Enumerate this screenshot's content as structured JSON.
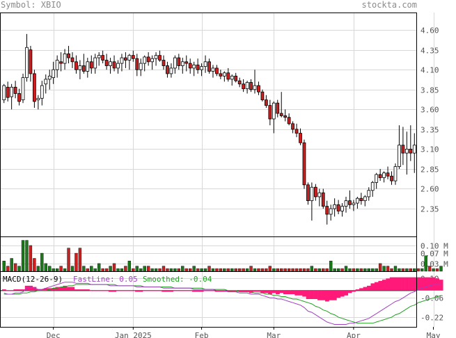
{
  "header": {
    "symbol_text": "Symbol: XBIO",
    "site_text": "stockta.com"
  },
  "colors": {
    "up": "#ffffff",
    "down": "#cc1f1f",
    "vol_up": "#1a7a1a",
    "vol_down": "#cc1f1f",
    "grid": "#d8d8d8",
    "frame": "#000000",
    "macd_hist": "#ff1a7a",
    "fastline": "#a040c0",
    "smoothed": "#20a020",
    "axis_text": "#555555"
  },
  "chart_data": [
    {
      "type": "candlestick",
      "title": "",
      "ylim": [
        2.0,
        4.82
      ],
      "yticks": [
        4.6,
        4.35,
        4.1,
        3.85,
        3.6,
        3.35,
        3.1,
        2.85,
        2.6,
        2.35
      ],
      "ytick_labels": [
        "4.60",
        "4.35",
        "4.10",
        "3.85",
        "3.60",
        "3.35",
        "3.10",
        "2.85",
        "2.60",
        "2.35"
      ],
      "xtick_labels": [
        "Dec",
        "Jan 2025",
        "Feb",
        "Mar",
        "Apr",
        "May"
      ],
      "xtick_bar_index": [
        13,
        34,
        52,
        71,
        92,
        113
      ],
      "grid": true,
      "bars": [
        [
          3.72,
          3.92,
          3.68,
          3.9
        ],
        [
          3.88,
          3.95,
          3.7,
          3.75
        ],
        [
          3.76,
          3.92,
          3.6,
          3.88
        ],
        [
          3.88,
          3.96,
          3.74,
          3.8
        ],
        [
          3.8,
          3.86,
          3.65,
          3.7
        ],
        [
          3.72,
          4.05,
          3.68,
          4.0
        ],
        [
          4.0,
          4.55,
          3.95,
          4.38
        ],
        [
          4.35,
          4.4,
          3.95,
          4.05
        ],
        [
          4.05,
          4.1,
          3.62,
          3.7
        ],
        [
          3.72,
          3.78,
          3.6,
          3.74
        ],
        [
          3.74,
          3.96,
          3.65,
          3.9
        ],
        [
          3.92,
          4.04,
          3.8,
          3.98
        ],
        [
          3.98,
          4.1,
          3.85,
          4.02
        ],
        [
          4.0,
          4.2,
          3.92,
          4.1
        ],
        [
          4.1,
          4.28,
          4.0,
          4.22
        ],
        [
          4.2,
          4.32,
          4.08,
          4.18
        ],
        [
          4.18,
          4.36,
          4.1,
          4.3
        ],
        [
          4.3,
          4.4,
          4.18,
          4.25
        ],
        [
          4.25,
          4.32,
          4.12,
          4.2
        ],
        [
          4.2,
          4.28,
          4.05,
          4.1
        ],
        [
          4.1,
          4.22,
          3.98,
          4.15
        ],
        [
          4.15,
          4.3,
          4.05,
          4.08
        ],
        [
          4.08,
          4.25,
          4.0,
          4.2
        ],
        [
          4.2,
          4.28,
          4.05,
          4.12
        ],
        [
          4.12,
          4.3,
          4.05,
          4.25
        ],
        [
          4.25,
          4.32,
          4.15,
          4.28
        ],
        [
          4.28,
          4.34,
          4.18,
          4.22
        ],
        [
          4.22,
          4.3,
          4.1,
          4.15
        ],
        [
          4.15,
          4.25,
          4.05,
          4.2
        ],
        [
          4.2,
          4.28,
          4.08,
          4.12
        ],
        [
          4.12,
          4.22,
          4.05,
          4.18
        ],
        [
          4.18,
          4.3,
          4.08,
          4.25
        ],
        [
          4.25,
          4.32,
          4.12,
          4.22
        ],
        [
          4.22,
          4.3,
          4.1,
          4.28
        ],
        [
          4.28,
          4.34,
          4.2,
          4.24
        ],
        [
          4.24,
          4.3,
          4.02,
          4.1
        ],
        [
          4.1,
          4.24,
          4.02,
          4.18
        ],
        [
          4.18,
          4.28,
          4.08,
          4.26
        ],
        [
          4.26,
          4.32,
          4.15,
          4.2
        ],
        [
          4.2,
          4.28,
          4.1,
          4.24
        ],
        [
          4.24,
          4.32,
          4.15,
          4.28
        ],
        [
          4.28,
          4.34,
          4.2,
          4.22
        ],
        [
          4.22,
          4.28,
          4.1,
          4.15
        ],
        [
          4.15,
          4.2,
          4.0,
          4.05
        ],
        [
          4.05,
          4.18,
          4.0,
          4.12
        ],
        [
          4.12,
          4.28,
          4.05,
          4.25
        ],
        [
          4.25,
          4.3,
          4.1,
          4.15
        ],
        [
          4.15,
          4.25,
          4.05,
          4.2
        ],
        [
          4.2,
          4.28,
          4.08,
          4.18
        ],
        [
          4.18,
          4.24,
          4.05,
          4.12
        ],
        [
          4.12,
          4.2,
          4.02,
          4.16
        ],
        [
          4.16,
          4.24,
          4.05,
          4.1
        ],
        [
          4.1,
          4.18,
          4.02,
          4.14
        ],
        [
          4.14,
          4.28,
          4.06,
          4.2
        ],
        [
          4.2,
          4.24,
          4.05,
          4.08
        ],
        [
          4.08,
          4.16,
          4.0,
          4.12
        ],
        [
          4.12,
          4.16,
          4.02,
          4.05
        ],
        [
          4.05,
          4.1,
          3.98,
          4.02
        ],
        [
          4.02,
          4.08,
          3.95,
          4.06
        ],
        [
          4.06,
          4.12,
          3.95,
          3.98
        ],
        [
          3.98,
          4.04,
          3.9,
          4.02
        ],
        [
          4.02,
          4.06,
          3.94,
          3.96
        ],
        [
          3.96,
          4.0,
          3.88,
          3.92
        ],
        [
          3.92,
          3.98,
          3.82,
          3.86
        ],
        [
          3.86,
          3.96,
          3.8,
          3.94
        ],
        [
          3.94,
          3.98,
          3.82,
          3.85
        ],
        [
          3.85,
          4.1,
          3.8,
          3.9
        ],
        [
          3.9,
          3.95,
          3.78,
          3.82
        ],
        [
          3.82,
          3.85,
          3.7,
          3.72
        ],
        [
          3.72,
          3.78,
          3.62,
          3.65
        ],
        [
          3.65,
          3.72,
          3.4,
          3.48
        ],
        [
          3.48,
          3.7,
          3.3,
          3.68
        ],
        [
          3.68,
          3.72,
          3.5,
          3.55
        ],
        [
          3.55,
          3.82,
          3.5,
          3.52
        ],
        [
          3.52,
          3.6,
          3.45,
          3.5
        ],
        [
          3.5,
          3.55,
          3.4,
          3.42
        ],
        [
          3.42,
          3.45,
          3.3,
          3.35
        ],
        [
          3.35,
          3.42,
          3.25,
          3.3
        ],
        [
          3.3,
          3.36,
          3.15,
          3.18
        ],
        [
          3.18,
          3.22,
          2.6,
          2.65
        ],
        [
          2.65,
          2.68,
          2.4,
          2.45
        ],
        [
          2.45,
          2.68,
          2.2,
          2.62
        ],
        [
          2.62,
          2.66,
          2.45,
          2.5
        ],
        [
          2.5,
          2.6,
          2.38,
          2.55
        ],
        [
          2.55,
          2.6,
          2.35,
          2.38
        ],
        [
          2.38,
          2.45,
          2.15,
          2.28
        ],
        [
          2.28,
          2.4,
          2.2,
          2.35
        ],
        [
          2.35,
          2.48,
          2.25,
          2.4
        ],
        [
          2.4,
          2.46,
          2.28,
          2.32
        ],
        [
          2.32,
          2.42,
          2.25,
          2.38
        ],
        [
          2.38,
          2.5,
          2.3,
          2.45
        ],
        [
          2.45,
          2.58,
          2.35,
          2.4
        ],
        [
          2.4,
          2.46,
          2.32,
          2.42
        ],
        [
          2.42,
          2.5,
          2.35,
          2.48
        ],
        [
          2.48,
          2.55,
          2.4,
          2.45
        ],
        [
          2.45,
          2.52,
          2.38,
          2.5
        ],
        [
          2.5,
          2.62,
          2.45,
          2.58
        ],
        [
          2.58,
          2.7,
          2.5,
          2.68
        ],
        [
          2.68,
          2.8,
          2.6,
          2.78
        ],
        [
          2.78,
          2.85,
          2.7,
          2.74
        ],
        [
          2.74,
          2.82,
          2.68,
          2.8
        ],
        [
          2.8,
          2.88,
          2.72,
          2.76
        ],
        [
          2.76,
          2.82,
          2.65,
          2.7
        ],
        [
          2.7,
          2.92,
          2.65,
          2.88
        ],
        [
          2.88,
          3.4,
          2.85,
          3.15
        ],
        [
          3.15,
          3.38,
          2.9,
          3.05
        ],
        [
          3.05,
          3.32,
          2.78,
          3.1
        ],
        [
          3.1,
          3.4,
          2.95,
          3.05
        ],
        [
          3.05,
          3.3,
          2.8,
          3.15
        ]
      ]
    },
    {
      "type": "bar",
      "title": "Volume",
      "ytick_labels": [
        "0.10 M",
        "0.07 M",
        "0.03 M"
      ],
      "yticks": [
        0.1,
        0.07,
        0.03
      ],
      "ylim": [
        0,
        0.135
      ],
      "values": [
        0.04,
        0.02,
        0.05,
        0.03,
        0.02,
        0.12,
        0.12,
        0.1,
        0.05,
        0.02,
        0.07,
        0.03,
        0.02,
        0.01,
        0.01,
        0.02,
        0.01,
        0.09,
        0.02,
        0.07,
        0.09,
        0.02,
        0.01,
        0.02,
        0.01,
        0.03,
        0.01,
        0.01,
        0.02,
        0.03,
        0.01,
        0.01,
        0.02,
        0.04,
        0.01,
        0.02,
        0.01,
        0.02,
        0.02,
        0.01,
        0.01,
        0.01,
        0.02,
        0.01,
        0.01,
        0.01,
        0.01,
        0.02,
        0.01,
        0.01,
        0.02,
        0.01,
        0.01,
        0.01,
        0.02,
        0.01,
        0.01,
        0.01,
        0.01,
        0.01,
        0.01,
        0.01,
        0.01,
        0.01,
        0.01,
        0.02,
        0.01,
        0.01,
        0.01,
        0.01,
        0.02,
        0.01,
        0.01,
        0.01,
        0.01,
        0.01,
        0.01,
        0.01,
        0.01,
        0.01,
        0.01,
        0.02,
        0.01,
        0.01,
        0.01,
        0.01,
        0.04,
        0.01,
        0.01,
        0.01,
        0.02,
        0.01,
        0.01,
        0.01,
        0.01,
        0.01,
        0.01,
        0.01,
        0.01,
        0.03,
        0.02,
        0.02,
        0.01,
        0.02,
        0.01,
        0.01,
        0.01,
        0.01,
        0.01,
        0.01,
        0.01,
        0.06,
        0.02,
        0.01,
        0.01,
        0.02
      ],
      "up": [
        true,
        false,
        true,
        false,
        true,
        true,
        true,
        false,
        false,
        true,
        true,
        true,
        true,
        true,
        true,
        false,
        true,
        false,
        true,
        false,
        false,
        true,
        false,
        true,
        true,
        true,
        false,
        false,
        true,
        false,
        true,
        true,
        false,
        true,
        false,
        true,
        true,
        true,
        false,
        true,
        true,
        false,
        false,
        false,
        true,
        true,
        false,
        true,
        false,
        false,
        true,
        false,
        true,
        true,
        false,
        true,
        false,
        false,
        true,
        false,
        true,
        false,
        false,
        false,
        true,
        false,
        true,
        false,
        false,
        false,
        false,
        true,
        false,
        false,
        false,
        false,
        false,
        false,
        false,
        false,
        false,
        true,
        false,
        true,
        false,
        false,
        true,
        true,
        true,
        false,
        true,
        true,
        false,
        true,
        false,
        true,
        true,
        true,
        true,
        false,
        true,
        false,
        false,
        true,
        true,
        false,
        true,
        false,
        true,
        false,
        true,
        true,
        false,
        true,
        false,
        true
      ]
    },
    {
      "type": "line",
      "title": "MACD(12-26-9)",
      "ylim": [
        -0.3,
        0.16
      ],
      "yticks": [
        0.1,
        -0.06,
        -0.22
      ],
      "ytick_labels": [
        "0.10",
        "-0.06",
        "-0.22"
      ],
      "legend": {
        "title": "MACD(12-26-9)",
        "fast_label": "FastLine: 0.05",
        "smoothed_label": "Smoothed: -0.04"
      },
      "series": [
        {
          "name": "FastLine",
          "values": [
            -0.02,
            -0.03,
            -0.03,
            -0.02,
            -0.02,
            -0.01,
            0.02,
            0.03,
            0.02,
            0.01,
            0.01,
            0.02,
            0.03,
            0.04,
            0.05,
            0.06,
            0.07,
            0.07,
            0.07,
            0.06,
            0.06,
            0.06,
            0.06,
            0.05,
            0.05,
            0.05,
            0.05,
            0.05,
            0.04,
            0.04,
            0.04,
            0.04,
            0.04,
            0.04,
            0.04,
            0.03,
            0.03,
            0.03,
            0.03,
            0.03,
            0.03,
            0.03,
            0.02,
            0.02,
            0.02,
            0.02,
            0.02,
            0.02,
            0.02,
            0.02,
            0.01,
            0.01,
            0.01,
            0.01,
            0.01,
            0.01,
            0.0,
            0.0,
            0.0,
            -0.01,
            -0.01,
            -0.01,
            -0.02,
            -0.02,
            -0.02,
            -0.03,
            -0.03,
            -0.03,
            -0.04,
            -0.05,
            -0.06,
            -0.06,
            -0.07,
            -0.07,
            -0.08,
            -0.09,
            -0.1,
            -0.11,
            -0.12,
            -0.14,
            -0.17,
            -0.18,
            -0.2,
            -0.22,
            -0.24,
            -0.26,
            -0.27,
            -0.28,
            -0.28,
            -0.28,
            -0.28,
            -0.27,
            -0.27,
            -0.26,
            -0.25,
            -0.24,
            -0.23,
            -0.21,
            -0.19,
            -0.17,
            -0.15,
            -0.13,
            -0.11,
            -0.09,
            -0.08,
            -0.06,
            -0.04,
            -0.02,
            -0.01,
            0.01,
            0.02,
            0.03,
            0.04,
            0.05,
            0.05,
            0.05
          ]
        },
        {
          "name": "Smoothed",
          "values": [
            -0.03,
            -0.03,
            -0.03,
            -0.03,
            -0.03,
            -0.02,
            -0.02,
            -0.01,
            -0.01,
            0.0,
            0.0,
            0.0,
            0.01,
            0.02,
            0.02,
            0.03,
            0.03,
            0.04,
            0.04,
            0.05,
            0.05,
            0.05,
            0.05,
            0.05,
            0.05,
            0.05,
            0.05,
            0.05,
            0.05,
            0.05,
            0.04,
            0.04,
            0.04,
            0.04,
            0.04,
            0.04,
            0.04,
            0.03,
            0.03,
            0.03,
            0.03,
            0.03,
            0.03,
            0.03,
            0.03,
            0.02,
            0.02,
            0.02,
            0.02,
            0.02,
            0.02,
            0.02,
            0.02,
            0.01,
            0.01,
            0.01,
            0.01,
            0.01,
            0.01,
            0.0,
            0.0,
            0.0,
            -0.01,
            -0.01,
            -0.01,
            -0.01,
            -0.02,
            -0.02,
            -0.02,
            -0.03,
            -0.03,
            -0.04,
            -0.04,
            -0.05,
            -0.05,
            -0.06,
            -0.07,
            -0.07,
            -0.08,
            -0.09,
            -0.1,
            -0.11,
            -0.13,
            -0.14,
            -0.16,
            -0.17,
            -0.19,
            -0.2,
            -0.22,
            -0.23,
            -0.24,
            -0.25,
            -0.26,
            -0.27,
            -0.27,
            -0.27,
            -0.27,
            -0.27,
            -0.26,
            -0.25,
            -0.24,
            -0.23,
            -0.22,
            -0.2,
            -0.19,
            -0.17,
            -0.15,
            -0.13,
            -0.12,
            -0.1,
            -0.09,
            -0.08,
            -0.07,
            -0.06,
            -0.05,
            -0.04
          ]
        }
      ]
    }
  ]
}
